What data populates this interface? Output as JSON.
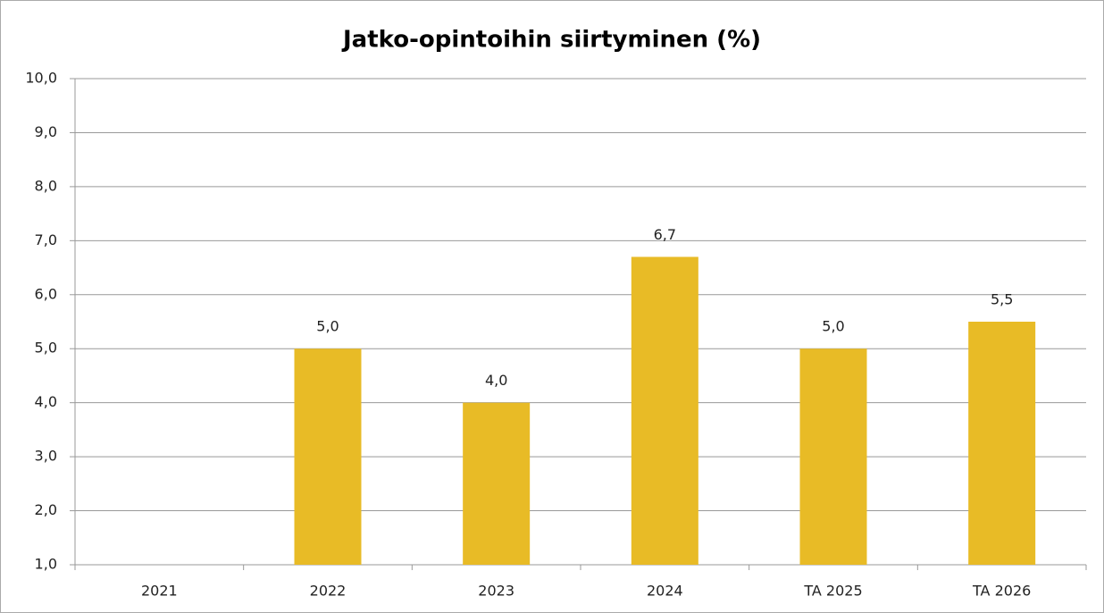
{
  "chart_data": {
    "type": "bar",
    "title": "Jatko-opintoihin siirtyminen (%)",
    "categories": [
      "2021",
      "2022",
      "2023",
      "2024",
      "TA 2025",
      "TA 2026"
    ],
    "values": [
      null,
      5.0,
      4.0,
      6.7,
      5.0,
      5.5
    ],
    "value_labels": [
      null,
      "5,0",
      "4,0",
      "6,7",
      "5,0",
      "5,5"
    ],
    "color": "#e8bb26",
    "ylim": [
      1,
      10
    ],
    "yticks": [
      {
        "value": 1,
        "label": "1,0"
      },
      {
        "value": 2,
        "label": "2,0"
      },
      {
        "value": 3,
        "label": "3,0"
      },
      {
        "value": 4,
        "label": "4,0"
      },
      {
        "value": 5,
        "label": "5,0"
      },
      {
        "value": 6,
        "label": "6,0"
      },
      {
        "value": 7,
        "label": "7,0"
      },
      {
        "value": 8,
        "label": "8,0"
      },
      {
        "value": 9,
        "label": "9,0"
      },
      {
        "value": 10,
        "label": "10,0"
      }
    ],
    "grid": true
  }
}
